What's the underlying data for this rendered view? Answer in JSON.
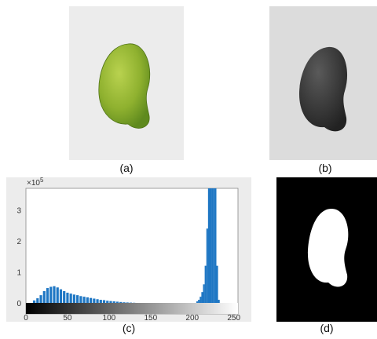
{
  "captions": {
    "a": "(a)",
    "b": "(b)",
    "c": "(c)",
    "d": "(d)"
  },
  "chart_data": {
    "type": "bar",
    "title": "",
    "xlabel": "",
    "ylabel": "",
    "y_exponent_label": "×10",
    "y_exponent_power": "5",
    "xlim": [
      0,
      255
    ],
    "ylim": [
      0,
      3.7
    ],
    "x_ticks": [
      "0",
      "50",
      "100",
      "150",
      "200",
      "250"
    ],
    "y_ticks": [
      "0",
      "1",
      "2",
      "3"
    ],
    "bar_color": "#1f77c4",
    "bins_x": [
      10,
      14,
      18,
      22,
      26,
      30,
      34,
      38,
      42,
      46,
      50,
      54,
      58,
      62,
      66,
      70,
      74,
      78,
      82,
      86,
      90,
      94,
      98,
      102,
      106,
      110,
      114,
      118,
      122,
      126,
      130,
      206,
      208,
      210,
      212,
      214,
      216,
      218,
      220,
      222,
      224,
      226,
      228,
      230,
      232
    ],
    "bins_y": [
      0.08,
      0.15,
      0.25,
      0.38,
      0.48,
      0.52,
      0.54,
      0.5,
      0.44,
      0.38,
      0.33,
      0.3,
      0.27,
      0.25,
      0.22,
      0.2,
      0.18,
      0.16,
      0.14,
      0.12,
      0.1,
      0.09,
      0.07,
      0.06,
      0.05,
      0.04,
      0.03,
      0.02,
      0.015,
      0.01,
      0.005,
      0.05,
      0.1,
      0.2,
      0.35,
      0.6,
      1.2,
      2.4,
      3.7,
      3.7,
      3.7,
      3.7,
      3.7,
      1.2,
      0.1
    ],
    "colorbar": "grayscale 0-255"
  }
}
